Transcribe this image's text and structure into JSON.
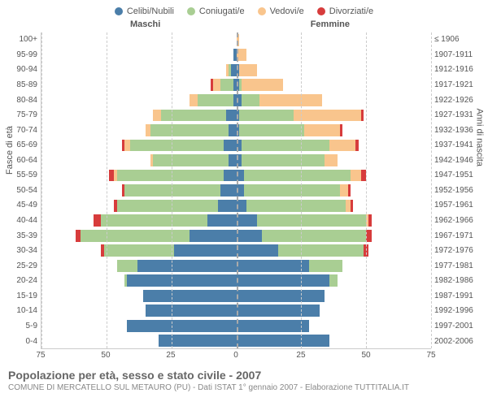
{
  "chart": {
    "type": "population-pyramid",
    "legend": [
      {
        "label": "Celibi/Nubili",
        "color": "#4b7ea9"
      },
      {
        "label": "Coniugati/e",
        "color": "#a9ce93"
      },
      {
        "label": "Vedovi/e",
        "color": "#f9c58d"
      },
      {
        "label": "Divorziati/e",
        "color": "#d73c3c"
      }
    ],
    "gender_left": "Maschi",
    "gender_right": "Femmine",
    "y_left_title": "Fasce di età",
    "y_right_title": "Anni di nascita",
    "x_max": 75,
    "x_ticks": [
      75,
      50,
      25,
      0,
      25,
      50,
      75
    ],
    "background_color": "#ffffff",
    "grid_color": "#cccccc",
    "label_fontsize": 10,
    "rows": [
      {
        "age": "100+",
        "birth": "≤ 1906",
        "m": [
          0,
          0,
          0,
          0
        ],
        "f": [
          0,
          0,
          1,
          0
        ]
      },
      {
        "age": "95-99",
        "birth": "1907-1911",
        "m": [
          1,
          0,
          0,
          0
        ],
        "f": [
          0,
          0,
          4,
          0
        ]
      },
      {
        "age": "90-94",
        "birth": "1912-1916",
        "m": [
          2,
          1,
          1,
          0
        ],
        "f": [
          1,
          0,
          7,
          0
        ]
      },
      {
        "age": "85-89",
        "birth": "1917-1921",
        "m": [
          1,
          5,
          3,
          1
        ],
        "f": [
          1,
          1,
          16,
          0
        ]
      },
      {
        "age": "80-84",
        "birth": "1922-1926",
        "m": [
          1,
          14,
          3,
          0
        ],
        "f": [
          2,
          7,
          24,
          0
        ]
      },
      {
        "age": "75-79",
        "birth": "1927-1931",
        "m": [
          4,
          25,
          3,
          0
        ],
        "f": [
          1,
          21,
          26,
          1
        ]
      },
      {
        "age": "70-74",
        "birth": "1932-1936",
        "m": [
          3,
          30,
          2,
          0
        ],
        "f": [
          1,
          25,
          14,
          1
        ]
      },
      {
        "age": "65-69",
        "birth": "1937-1941",
        "m": [
          5,
          36,
          2,
          1
        ],
        "f": [
          2,
          34,
          10,
          1
        ]
      },
      {
        "age": "60-64",
        "birth": "1942-1946",
        "m": [
          3,
          29,
          1,
          0
        ],
        "f": [
          2,
          32,
          5,
          0
        ]
      },
      {
        "age": "55-59",
        "birth": "1947-1951",
        "m": [
          5,
          41,
          1,
          2
        ],
        "f": [
          3,
          41,
          4,
          2
        ]
      },
      {
        "age": "50-54",
        "birth": "1952-1956",
        "m": [
          6,
          37,
          0,
          1
        ],
        "f": [
          3,
          37,
          3,
          1
        ]
      },
      {
        "age": "45-49",
        "birth": "1957-1961",
        "m": [
          7,
          39,
          0,
          1
        ],
        "f": [
          4,
          38,
          2,
          1
        ]
      },
      {
        "age": "40-44",
        "birth": "1962-1966",
        "m": [
          11,
          41,
          0,
          3
        ],
        "f": [
          8,
          42,
          1,
          1
        ]
      },
      {
        "age": "35-39",
        "birth": "1967-1971",
        "m": [
          18,
          42,
          0,
          2
        ],
        "f": [
          10,
          40,
          0,
          2
        ]
      },
      {
        "age": "30-34",
        "birth": "1972-1976",
        "m": [
          24,
          27,
          0,
          1
        ],
        "f": [
          16,
          33,
          0,
          2
        ]
      },
      {
        "age": "25-29",
        "birth": "1977-1981",
        "m": [
          38,
          8,
          0,
          0
        ],
        "f": [
          28,
          13,
          0,
          0
        ]
      },
      {
        "age": "20-24",
        "birth": "1982-1986",
        "m": [
          42,
          1,
          0,
          0
        ],
        "f": [
          36,
          3,
          0,
          0
        ]
      },
      {
        "age": "15-19",
        "birth": "1987-1991",
        "m": [
          36,
          0,
          0,
          0
        ],
        "f": [
          34,
          0,
          0,
          0
        ]
      },
      {
        "age": "10-14",
        "birth": "1992-1996",
        "m": [
          35,
          0,
          0,
          0
        ],
        "f": [
          32,
          0,
          0,
          0
        ]
      },
      {
        "age": "5-9",
        "birth": "1997-2001",
        "m": [
          42,
          0,
          0,
          0
        ],
        "f": [
          28,
          0,
          0,
          0
        ]
      },
      {
        "age": "0-4",
        "birth": "2002-2006",
        "m": [
          30,
          0,
          0,
          0
        ],
        "f": [
          36,
          0,
          0,
          0
        ]
      }
    ],
    "title": "Popolazione per età, sesso e stato civile - 2007",
    "subtitle": "COMUNE DI MERCATELLO SUL METAURO (PU) - Dati ISTAT 1° gennaio 2007 - Elaborazione TUTTITALIA.IT"
  }
}
